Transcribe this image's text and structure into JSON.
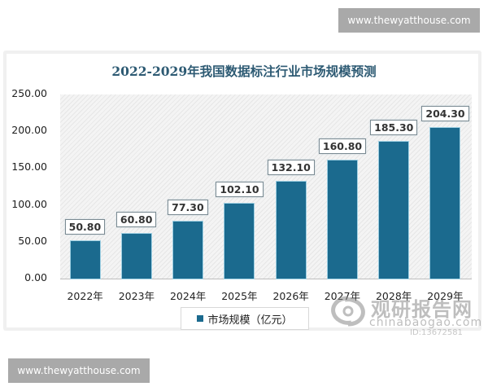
{
  "watermarks": {
    "top_right": "www.thewyatthouse.com",
    "bottom_left": "www.thewyatthouse.com",
    "logo_cn": "观研报告网",
    "logo_en": "chinabaogao.com",
    "logo_id": "ID:13672581"
  },
  "chart": {
    "title": "2022-2029年我国数据标注行业市场规模预测",
    "legend_label": "市场规模（亿元）",
    "y_ticks": [
      "250.00",
      "200.00",
      "150.00",
      "100.00",
      "50.00",
      "0.00"
    ],
    "x_labels": [
      "2022年",
      "2023年",
      "2024年",
      "2025年",
      "2026年",
      "2027年",
      "2028年",
      "2029年"
    ],
    "value_labels": [
      "50.80",
      "60.80",
      "77.30",
      "102.10",
      "132.10",
      "160.80",
      "185.30",
      "204.30"
    ],
    "bar_color": "#1b6a8e"
  },
  "chart_data": {
    "type": "bar",
    "title": "2022-2029年我国数据标注行业市场规模预测",
    "categories": [
      "2022年",
      "2023年",
      "2024年",
      "2025年",
      "2026年",
      "2027年",
      "2028年",
      "2029年"
    ],
    "series": [
      {
        "name": "市场规模（亿元）",
        "values": [
          50.8,
          60.8,
          77.3,
          102.1,
          132.1,
          160.8,
          185.3,
          204.3
        ]
      }
    ],
    "xlabel": "",
    "ylabel": "",
    "ylim": [
      0,
      250
    ],
    "y_tick_step": 50,
    "grid": false,
    "legend_position": "bottom",
    "data_labels": true
  }
}
